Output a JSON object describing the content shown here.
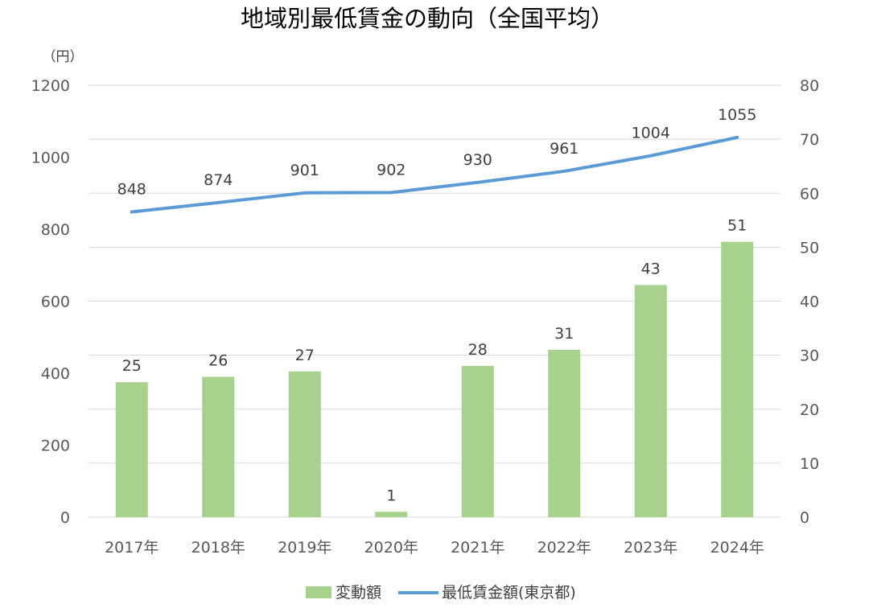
{
  "chart_data": {
    "type": "bar+line",
    "title": "地域別最低賃金の動向（全国平均）",
    "ylabel": "（円）",
    "categories": [
      "2017年",
      "2018年",
      "2019年",
      "2020年",
      "2021年",
      "2022年",
      "2023年",
      "2024年"
    ],
    "series": [
      {
        "name": "変動額",
        "type": "bar",
        "axis": "right",
        "color": "#a9d18e",
        "values": [
          25,
          26,
          27,
          1,
          28,
          31,
          43,
          51
        ]
      },
      {
        "name": "最低賃金額(東京都)",
        "type": "line",
        "axis": "left",
        "color": "#5b9bd5",
        "values": [
          848,
          874,
          901,
          902,
          930,
          961,
          1004,
          1055
        ]
      }
    ],
    "ylim_left": [
      0,
      1200
    ],
    "yticks_left": [
      "0",
      "200",
      "400",
      "600",
      "800",
      "1000",
      "1200"
    ],
    "ylim_right": [
      0,
      80
    ],
    "yticks_right": [
      "0",
      "10",
      "20",
      "30",
      "40",
      "50",
      "60",
      "70",
      "80"
    ],
    "grid": true,
    "legend_position": "bottom"
  }
}
